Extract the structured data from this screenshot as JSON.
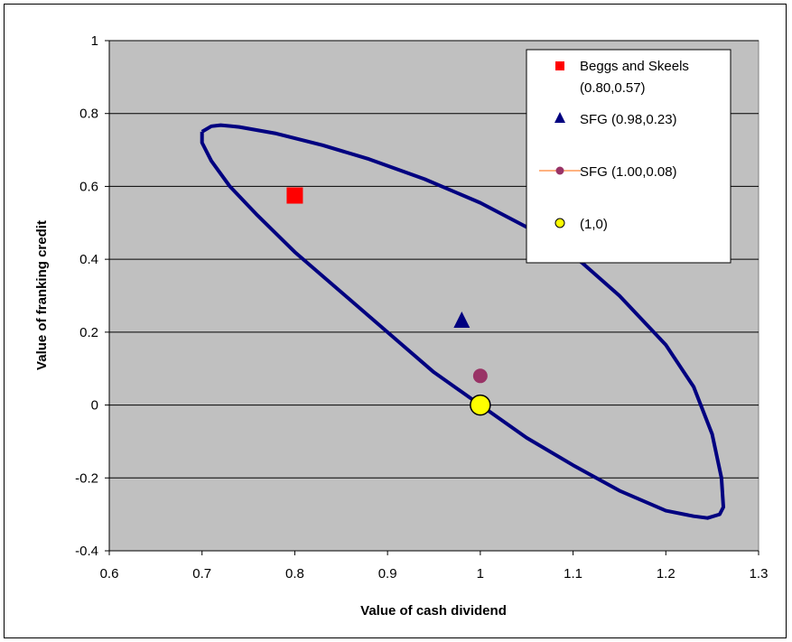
{
  "chart_data": {
    "type": "scatter",
    "title": "",
    "xlabel": "Value of cash dividend",
    "ylabel": "Value of franking credit",
    "xlim": [
      0.6,
      1.3
    ],
    "ylim": [
      -0.4,
      1.0
    ],
    "xticks": [
      0.6,
      0.7,
      0.8,
      0.9,
      1.0,
      1.1,
      1.2,
      1.3
    ],
    "yticks": [
      -0.4,
      -0.2,
      0,
      0.2,
      0.4,
      0.6,
      0.8,
      1.0
    ],
    "xtick_labels": [
      "0.6",
      "0.7",
      "0.8",
      "0.9",
      "1",
      "1.1",
      "1.2",
      "1.3"
    ],
    "ytick_labels": [
      "-0.4",
      "-0.2",
      "0",
      "0.2",
      "0.4",
      "0.6",
      "0.8",
      "1"
    ],
    "grid": "horizontal",
    "plot_background": "#C0C0C0",
    "legend_position": "top-right",
    "confidence_ellipse": {
      "color": "#000080",
      "points": [
        [
          0.7,
          0.75
        ],
        [
          0.71,
          0.765
        ],
        [
          0.72,
          0.768
        ],
        [
          0.74,
          0.763
        ],
        [
          0.78,
          0.745
        ],
        [
          0.83,
          0.713
        ],
        [
          0.88,
          0.675
        ],
        [
          0.94,
          0.62
        ],
        [
          1.0,
          0.555
        ],
        [
          1.06,
          0.475
        ],
        [
          1.11,
          0.39
        ],
        [
          1.15,
          0.3
        ],
        [
          1.2,
          0.165
        ],
        [
          1.23,
          0.05
        ],
        [
          1.25,
          -0.08
        ],
        [
          1.26,
          -0.2
        ],
        [
          1.262,
          -0.28
        ],
        [
          1.258,
          -0.3
        ],
        [
          1.245,
          -0.31
        ],
        [
          1.23,
          -0.305
        ],
        [
          1.2,
          -0.29
        ],
        [
          1.15,
          -0.235
        ],
        [
          1.1,
          -0.165
        ],
        [
          1.05,
          -0.09
        ],
        [
          1.0,
          0.0
        ],
        [
          0.95,
          0.09
        ],
        [
          0.9,
          0.2
        ],
        [
          0.85,
          0.31
        ],
        [
          0.8,
          0.42
        ],
        [
          0.76,
          0.52
        ],
        [
          0.73,
          0.6
        ],
        [
          0.71,
          0.67
        ],
        [
          0.7,
          0.72
        ],
        [
          0.7,
          0.75
        ]
      ]
    },
    "series": [
      {
        "name": "Beggs and Skeels (0.80,0.57)",
        "marker": "square",
        "color": "#FF0000",
        "x": 0.8,
        "y": 0.575
      },
      {
        "name": "SFG (0.98,0.23)",
        "marker": "triangle",
        "color": "#000080",
        "x": 0.98,
        "y": 0.23
      },
      {
        "name": "SFG (1.00,0.08)",
        "marker": "circle",
        "color": "#993366",
        "x": 1.0,
        "y": 0.08
      },
      {
        "name": "(1,0)",
        "marker": "circle",
        "color": "#FFFF00",
        "stroke": "#000000",
        "x": 1.0,
        "y": 0.0
      }
    ],
    "legend": {
      "entries": [
        {
          "lines": [
            "Beggs and Skeels",
            "(0.80,0.57)"
          ],
          "marker": "square",
          "color": "#FF0000"
        },
        {
          "lines": [
            "SFG (0.98,0.23)"
          ],
          "marker": "triangle",
          "color": "#000080"
        },
        {
          "lines": [
            "SFG (1.00,0.08)"
          ],
          "marker": "circle-line",
          "color": "#993366",
          "line_color": "#FF6600"
        },
        {
          "lines": [
            "(1,0)"
          ],
          "marker": "circle",
          "color": "#FFFF00",
          "stroke": "#000000"
        }
      ]
    }
  }
}
